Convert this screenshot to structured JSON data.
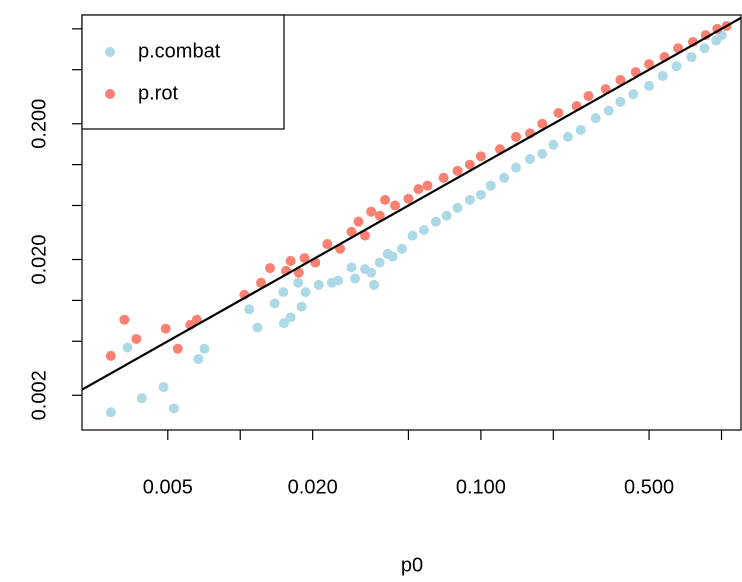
{
  "chart_data": {
    "type": "scatter",
    "x_label": "p0",
    "x_log": true,
    "y_log": true,
    "identity_line": true,
    "legend": "top-left",
    "xlim": [
      0.0022,
      1.205
    ],
    "ylim": [
      0.00111,
      1.265
    ],
    "xticks": [
      {
        "value": 0.005,
        "label": "0.005"
      },
      {
        "value": 0.02,
        "label": "0.020"
      },
      {
        "value": 0.1,
        "label": "0.100"
      },
      {
        "value": 0.5,
        "label": "0.500"
      }
    ],
    "xticks_minor": [
      0.01,
      0.05,
      0.2,
      1
    ],
    "yticks": [
      {
        "value": 0.002,
        "label": "0.002"
      },
      {
        "value": 0.02,
        "label": "0.020"
      },
      {
        "value": 0.2,
        "label": "0.200"
      }
    ],
    "yticks_minor": [
      0.005,
      0.01,
      0.05,
      0.1,
      0.5,
      1
    ],
    "series": [
      {
        "name": "p.combat",
        "color": "#add8e6",
        "x": [
          0.0029,
          0.0034,
          0.0039,
          0.0048,
          0.0053,
          0.0067,
          0.0071,
          0.0109,
          0.0118,
          0.0139,
          0.0151,
          0.0152,
          0.0162,
          0.0174,
          0.018,
          0.0187,
          0.0212,
          0.024,
          0.0255,
          0.029,
          0.03,
          0.033,
          0.035,
          0.036,
          0.038,
          0.041,
          0.043,
          0.047,
          0.052,
          0.058,
          0.065,
          0.072,
          0.08,
          0.09,
          0.1,
          0.11,
          0.125,
          0.14,
          0.16,
          0.18,
          0.2,
          0.23,
          0.26,
          0.3,
          0.34,
          0.38,
          0.43,
          0.5,
          0.57,
          0.65,
          0.75,
          0.85,
          0.95,
          1.0
        ],
        "values": [
          0.0015,
          0.0045,
          0.0019,
          0.0023,
          0.0016,
          0.0037,
          0.0044,
          0.0086,
          0.0063,
          0.0095,
          0.0115,
          0.0068,
          0.0075,
          0.0135,
          0.009,
          0.0115,
          0.013,
          0.0135,
          0.014,
          0.0175,
          0.0145,
          0.017,
          0.016,
          0.013,
          0.019,
          0.022,
          0.021,
          0.024,
          0.03,
          0.033,
          0.038,
          0.042,
          0.048,
          0.055,
          0.06,
          0.07,
          0.08,
          0.095,
          0.11,
          0.12,
          0.14,
          0.16,
          0.18,
          0.22,
          0.25,
          0.29,
          0.33,
          0.38,
          0.45,
          0.53,
          0.62,
          0.72,
          0.82,
          0.9
        ]
      },
      {
        "name": "p.rot",
        "color": "#fa8072",
        "x": [
          0.0029,
          0.0033,
          0.0037,
          0.0049,
          0.0055,
          0.0062,
          0.0066,
          0.0104,
          0.0122,
          0.0133,
          0.0155,
          0.0162,
          0.0175,
          0.0185,
          0.0205,
          0.023,
          0.026,
          0.029,
          0.031,
          0.033,
          0.035,
          0.038,
          0.04,
          0.044,
          0.05,
          0.055,
          0.06,
          0.07,
          0.08,
          0.09,
          0.1,
          0.12,
          0.14,
          0.16,
          0.18,
          0.21,
          0.25,
          0.28,
          0.33,
          0.38,
          0.44,
          0.5,
          0.58,
          0.66,
          0.76,
          0.86,
          0.96,
          1.05
        ],
        "values": [
          0.0039,
          0.0072,
          0.0052,
          0.0062,
          0.0044,
          0.0066,
          0.0072,
          0.011,
          0.0135,
          0.0173,
          0.0165,
          0.0195,
          0.016,
          0.0205,
          0.019,
          0.026,
          0.024,
          0.032,
          0.038,
          0.03,
          0.045,
          0.042,
          0.055,
          0.05,
          0.056,
          0.066,
          0.07,
          0.08,
          0.09,
          0.1,
          0.115,
          0.13,
          0.16,
          0.17,
          0.2,
          0.24,
          0.27,
          0.32,
          0.36,
          0.42,
          0.48,
          0.55,
          0.62,
          0.72,
          0.8,
          0.9,
          1.0,
          1.05
        ]
      }
    ]
  }
}
